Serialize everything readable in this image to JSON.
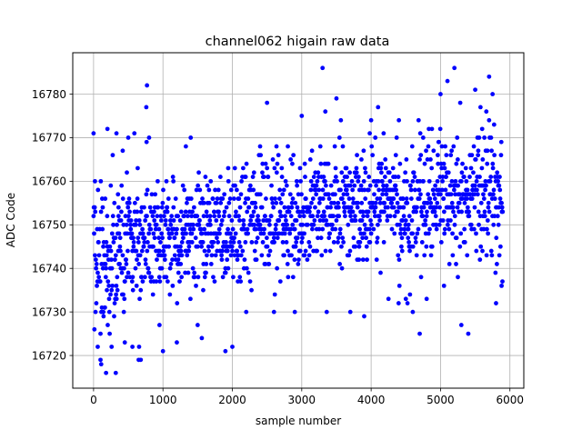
{
  "chart_data": {
    "type": "scatter",
    "title": "channel062 higain raw data",
    "xlabel": "sample number",
    "ylabel": "ADC Code",
    "xlim": [
      -300,
      6200
    ],
    "ylim": [
      16712.5,
      16789.5
    ],
    "xticks": [
      0,
      1000,
      2000,
      3000,
      4000,
      5000,
      6000
    ],
    "yticks": [
      16720,
      16730,
      16740,
      16750,
      16760,
      16770,
      16780
    ],
    "grid": true,
    "marker_color": "#0000ff",
    "n_samples": 5900,
    "series": [
      {
        "points": [
          [
            0,
            16771
          ],
          [
            20,
            16760
          ],
          [
            60,
            16722
          ],
          [
            100,
            16719
          ],
          [
            110,
            16718
          ],
          [
            140,
            16730
          ],
          [
            180,
            16716
          ],
          [
            200,
            16772
          ],
          [
            260,
            16722
          ],
          [
            320,
            16716
          ],
          [
            330,
            16771
          ],
          [
            360,
            16752
          ],
          [
            420,
            16767
          ],
          [
            450,
            16723
          ],
          [
            480,
            16762
          ],
          [
            500,
            16770
          ],
          [
            560,
            16722
          ],
          [
            650,
            16719
          ],
          [
            680,
            16719
          ],
          [
            760,
            16777
          ],
          [
            770,
            16782
          ],
          [
            800,
            16770
          ],
          [
            950,
            16727
          ],
          [
            1000,
            16721
          ],
          [
            1050,
            16760
          ],
          [
            1150,
            16760
          ],
          [
            1200,
            16723
          ],
          [
            1330,
            16768
          ],
          [
            1400,
            16770
          ],
          [
            1500,
            16727
          ],
          [
            1560,
            16724
          ],
          [
            1900,
            16721
          ],
          [
            1940,
            16763
          ],
          [
            2000,
            16722
          ],
          [
            2200,
            16730
          ],
          [
            2400,
            16768
          ],
          [
            2500,
            16778
          ],
          [
            2600,
            16730
          ],
          [
            2800,
            16768
          ],
          [
            2900,
            16730
          ],
          [
            3000,
            16775
          ],
          [
            3300,
            16786
          ],
          [
            3340,
            16776
          ],
          [
            3360,
            16730
          ],
          [
            3500,
            16779
          ],
          [
            3700,
            16730
          ],
          [
            3900,
            16729
          ],
          [
            3980,
            16771
          ],
          [
            4000,
            16774
          ],
          [
            4100,
            16777
          ],
          [
            4180,
            16771
          ],
          [
            4250,
            16733
          ],
          [
            4400,
            16774
          ],
          [
            4500,
            16733
          ],
          [
            4600,
            16730
          ],
          [
            4700,
            16725
          ],
          [
            4750,
            16770
          ],
          [
            4800,
            16733
          ],
          [
            5000,
            16780
          ],
          [
            5050,
            16736
          ],
          [
            5100,
            16783
          ],
          [
            5200,
            16786
          ],
          [
            5250,
            16738
          ],
          [
            5300,
            16727
          ],
          [
            5400,
            16725
          ],
          [
            5500,
            16781
          ],
          [
            5600,
            16772
          ],
          [
            5700,
            16784
          ],
          [
            5750,
            16780
          ],
          [
            5800,
            16732
          ],
          [
            5880,
            16736
          ]
        ]
      }
    ]
  }
}
